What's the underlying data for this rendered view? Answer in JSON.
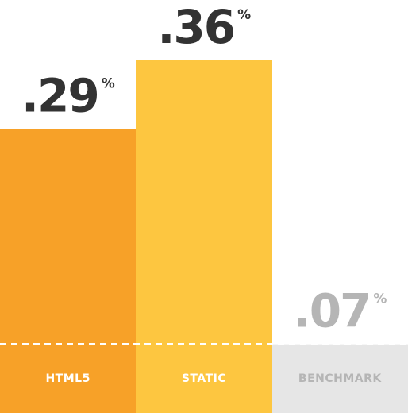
{
  "chart_data": {
    "type": "bar",
    "categories": [
      "HTML5",
      "STATIC",
      "BENCHMARK"
    ],
    "values": [
      0.29,
      0.36,
      0.07
    ],
    "value_labels": [
      ".29",
      ".36",
      ".07"
    ],
    "unit": "%",
    "colors": [
      "#f7a128",
      "#fdc640",
      "#e6e6e6"
    ],
    "ylim": [
      0,
      0.42
    ]
  }
}
